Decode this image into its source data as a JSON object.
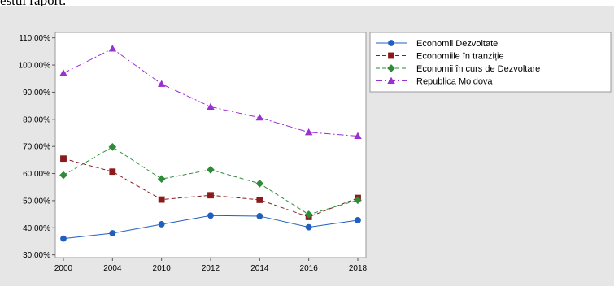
{
  "page": {
    "heading_fragment": "estui raport."
  },
  "chart_data": {
    "type": "line",
    "title": "",
    "xlabel": "",
    "ylabel": "",
    "categories": [
      "2000",
      "2004",
      "2010",
      "2012",
      "2014",
      "2016",
      "2018"
    ],
    "ylim": [
      0.29,
      1.12
    ],
    "yticks": [
      {
        "value": 0.3,
        "label": "30.00%"
      },
      {
        "value": 0.4,
        "label": "40.00%"
      },
      {
        "value": 0.5,
        "label": "50.00%"
      },
      {
        "value": 0.6,
        "label": "60.00%"
      },
      {
        "value": 0.7,
        "label": "70.00%"
      },
      {
        "value": 0.8,
        "label": "80.00%"
      },
      {
        "value": 0.9,
        "label": "90.00%"
      },
      {
        "value": 1.0,
        "label": "100.00%"
      },
      {
        "value": 1.1,
        "label": "110.00%"
      }
    ],
    "grid": false,
    "legend_position": "top-right",
    "series": [
      {
        "name": "Economii Dezvoltate",
        "values": [
          0.36,
          0.38,
          0.413,
          0.445,
          0.443,
          0.402,
          0.428
        ],
        "color": "#1f5fbf",
        "marker": "circle",
        "dash": "solid"
      },
      {
        "name": "Economiile în tranziție",
        "values": [
          0.655,
          0.607,
          0.504,
          0.52,
          0.503,
          0.44,
          0.51
        ],
        "color": "#8b1a1a",
        "marker": "square",
        "dash": "dashed"
      },
      {
        "name": "Economii în curs de Dezvoltare",
        "values": [
          0.594,
          0.698,
          0.58,
          0.614,
          0.563,
          0.449,
          0.502
        ],
        "color": "#2e8b3a",
        "marker": "diamond",
        "dash": "dashed"
      },
      {
        "name": "Republica Moldova",
        "values": [
          0.97,
          1.06,
          0.93,
          0.846,
          0.806,
          0.752,
          0.738
        ],
        "color": "#9b30d0",
        "marker": "triangle",
        "dash": "dashdot"
      }
    ]
  }
}
